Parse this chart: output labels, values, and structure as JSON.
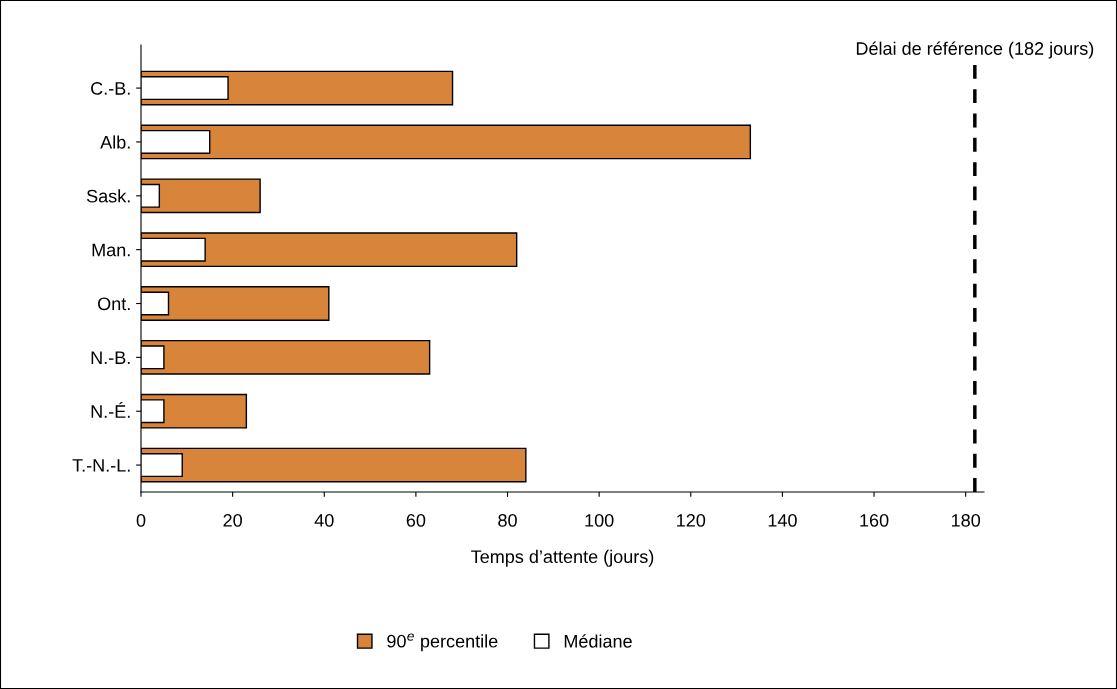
{
  "chart_data": {
    "type": "bar",
    "orientation": "horizontal",
    "xlabel": "Temps d’attente (jours)",
    "categories": [
      "C.-B.",
      "Alb.",
      "Sask.",
      "Man.",
      "Ont.",
      "N.-B.",
      "N.-É.",
      "T.-N.-L."
    ],
    "series": [
      {
        "name": "90$^{e}$ percentile",
        "color": "#d8843a",
        "values": [
          68,
          133,
          26,
          82,
          41,
          63,
          23,
          84
        ]
      },
      {
        "name": "Médiane",
        "color": "#ffffff",
        "values": [
          19,
          15,
          4,
          14,
          6,
          5,
          5,
          9
        ]
      }
    ],
    "xlim": [
      0,
      184
    ],
    "xticks": [
      0,
      20,
      40,
      60,
      80,
      100,
      120,
      140,
      160,
      180
    ],
    "ref_lines": [
      {
        "axis": "x",
        "value": 182,
        "label": "Délai de référence (182 jours)",
        "color": "#000000",
        "line_style": "dashed"
      }
    ],
    "grid": false,
    "legend": "bottom"
  }
}
